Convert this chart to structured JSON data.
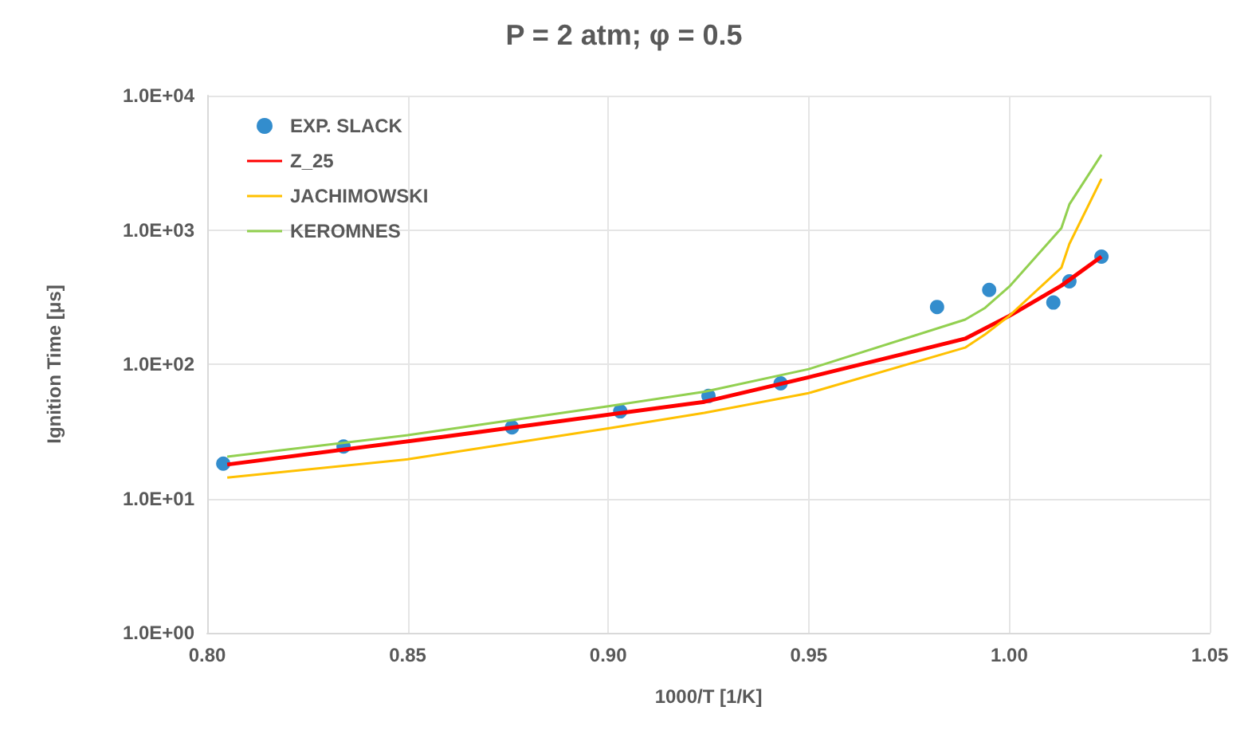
{
  "chart_data": {
    "type": "line",
    "title": "P = 2 atm; φ = 0.5",
    "xlabel": "1000/T [1/K]",
    "ylabel": "Ignition Time [μs]",
    "xlim": [
      0.8,
      1.05
    ],
    "xticks": [
      {
        "value": 0.8,
        "label": "0.80"
      },
      {
        "value": 0.85,
        "label": "0.85"
      },
      {
        "value": 0.9,
        "label": "0.90"
      },
      {
        "value": 0.95,
        "label": "0.95"
      },
      {
        "value": 1.0,
        "label": "1.00"
      },
      {
        "value": 1.05,
        "label": "1.05"
      }
    ],
    "ylim": [
      1,
      10000
    ],
    "yticks": [
      {
        "value": 1,
        "label": "1.0E+00"
      },
      {
        "value": 10,
        "label": "1.0E+01"
      },
      {
        "value": 100,
        "label": "1.0E+02"
      },
      {
        "value": 1000,
        "label": "1.0E+03"
      },
      {
        "value": 10000,
        "label": "1.0E+04"
      }
    ],
    "log": "y",
    "grid": true,
    "legend": "top left",
    "series": [
      {
        "name": "EXP. SLACK",
        "type": "scatter",
        "marker": "circle",
        "color": "#0070c0",
        "x": [
          0.804,
          0.834,
          0.876,
          0.903,
          0.925,
          0.943,
          0.982,
          0.995,
          1.011,
          1.015,
          1.023
        ],
        "values": [
          18.2,
          24.4,
          33.9,
          44.6,
          58,
          72,
          267,
          358,
          288,
          414,
          632
        ]
      },
      {
        "name": "Z_25",
        "marker": "none",
        "color": "#ff0000",
        "x": [
          0.805,
          0.859,
          0.924,
          0.95,
          0.973,
          0.989,
          1.0,
          1.013,
          1.023
        ],
        "values": [
          17.9,
          28.8,
          52.5,
          80,
          118,
          155,
          229,
          385,
          632
        ]
      },
      {
        "name": "JACHIMOWSKI",
        "marker": "none",
        "color": "#ffc000",
        "x": [
          0.805,
          0.85,
          0.9,
          0.924,
          0.95,
          0.989,
          0.994,
          1.0,
          1.013,
          1.015,
          1.023
        ],
        "values": [
          14.3,
          19.6,
          33.3,
          43.4,
          61,
          133,
          167,
          229,
          523,
          787,
          2400
        ]
      },
      {
        "name": "KEROMNES",
        "marker": "none",
        "color": "#92d050",
        "x": [
          0.805,
          0.85,
          0.9,
          0.924,
          0.95,
          0.989,
          0.994,
          1.0,
          1.013,
          1.015,
          1.023
        ],
        "values": [
          20.5,
          29.6,
          48.7,
          62.4,
          92,
          215,
          263,
          378,
          1030,
          1550,
          3630
        ]
      }
    ]
  }
}
